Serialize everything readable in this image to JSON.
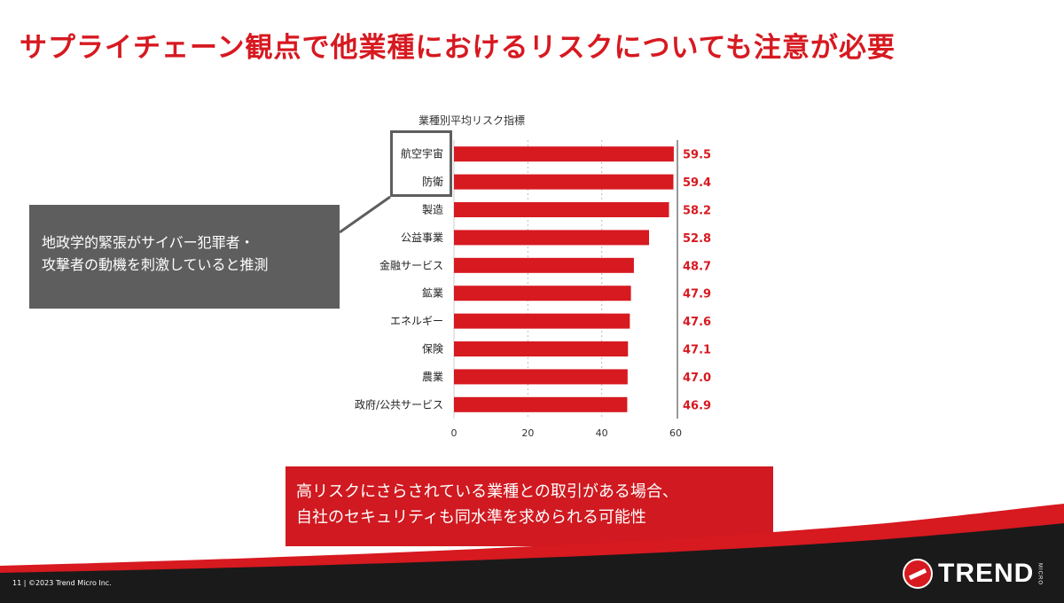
{
  "slide": {
    "title": "サプライチェーン観点で他業種におけるリスクについても注意が必要",
    "footer": "11 | ©2023 Trend Micro Inc."
  },
  "callout": {
    "line1": "地政学的緊張がサイバー犯罪者・",
    "line2": "攻撃者の動機を刺激していると推測"
  },
  "note": {
    "line1": "高リスクにさらされている業種との取引がある場合、",
    "line2": "自社のセキュリティも同水準を求められる可能性"
  },
  "logo": {
    "name": "TREND",
    "sub": "MICRO"
  },
  "colors": {
    "accent": "#d71920",
    "callout": "#5e5e5e",
    "footer": "#1a1a1a"
  },
  "chart_data": {
    "type": "bar",
    "orientation": "horizontal",
    "title": "業種別平均リスク指標",
    "categories": [
      "航空宇宙",
      "防衛",
      "製造",
      "公益事業",
      "金融サービス",
      "鉱業",
      "エネルギー",
      "保険",
      "農業",
      "政府/公共サービス"
    ],
    "values": [
      59.5,
      59.4,
      58.2,
      52.8,
      48.7,
      47.9,
      47.6,
      47.1,
      47.0,
      46.9
    ],
    "value_labels": [
      "59.5",
      "59.4",
      "58.2",
      "52.8",
      "48.7",
      "47.9",
      "47.6",
      "47.1",
      "47.0",
      "46.9"
    ],
    "xlim": [
      0,
      60
    ],
    "xticks": [
      0,
      20,
      40,
      60
    ],
    "grid": true,
    "bar_color": "#d71920"
  }
}
